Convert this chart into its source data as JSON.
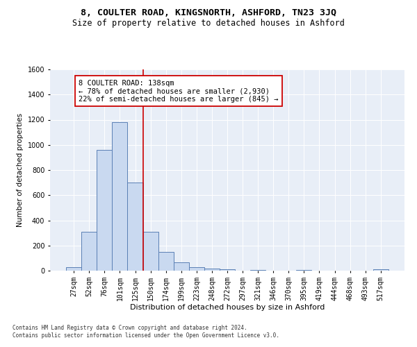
{
  "title": "8, COULTER ROAD, KINGSNORTH, ASHFORD, TN23 3JQ",
  "subtitle": "Size of property relative to detached houses in Ashford",
  "xlabel": "Distribution of detached houses by size in Ashford",
  "ylabel": "Number of detached properties",
  "footnote": "Contains HM Land Registry data © Crown copyright and database right 2024.\nContains public sector information licensed under the Open Government Licence v3.0.",
  "bar_labels": [
    "27sqm",
    "52sqm",
    "76sqm",
    "101sqm",
    "125sqm",
    "150sqm",
    "174sqm",
    "199sqm",
    "223sqm",
    "248sqm",
    "272sqm",
    "297sqm",
    "321sqm",
    "346sqm",
    "370sqm",
    "395sqm",
    "419sqm",
    "444sqm",
    "468sqm",
    "493sqm",
    "517sqm"
  ],
  "bar_values": [
    25,
    310,
    960,
    1180,
    700,
    310,
    150,
    65,
    25,
    15,
    10,
    0,
    5,
    0,
    0,
    5,
    0,
    0,
    0,
    0,
    10
  ],
  "bar_color": "#c9d9f0",
  "bar_edge_color": "#5a7fb5",
  "vline_x": 4.5,
  "vline_color": "#cc0000",
  "annotation_text": "8 COULTER ROAD: 138sqm\n← 78% of detached houses are smaller (2,930)\n22% of semi-detached houses are larger (845) →",
  "annotation_box_color": "#ffffff",
  "annotation_box_edge": "#cc0000",
  "ylim": [
    0,
    1600
  ],
  "yticks": [
    0,
    200,
    400,
    600,
    800,
    1000,
    1200,
    1400,
    1600
  ],
  "bg_color": "#e8eef7",
  "title_fontsize": 9.5,
  "subtitle_fontsize": 8.5,
  "xlabel_fontsize": 8,
  "ylabel_fontsize": 7.5,
  "tick_fontsize": 7,
  "annot_fontsize": 7.5,
  "footnote_fontsize": 5.5
}
